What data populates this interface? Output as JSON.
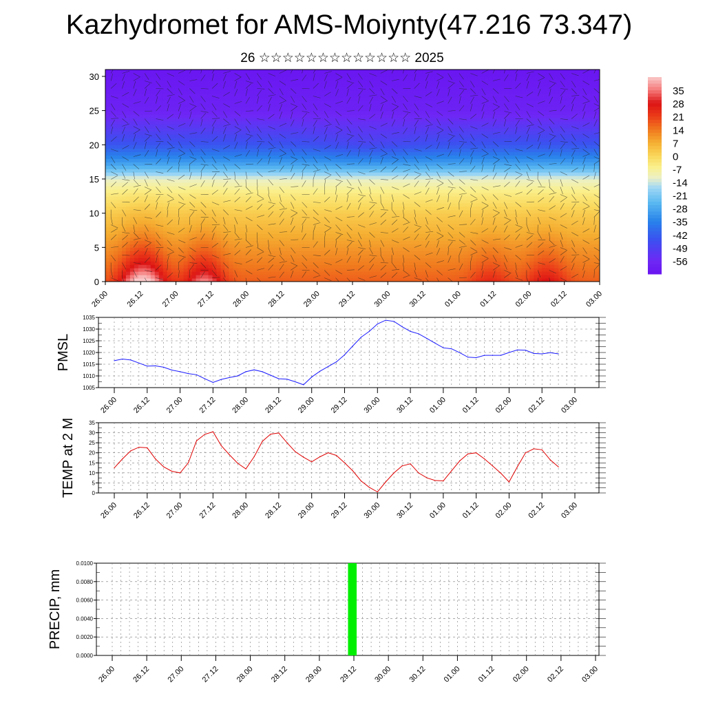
{
  "header": {
    "title": "Kazhydromet for AMS-Moiynty(47.216 73.347)",
    "subtitle": "26 ☆☆☆☆☆☆☆☆☆☆☆☆☆ 2025"
  },
  "colors": {
    "pmsl_line": "#1a1aff",
    "temp_line": "#e00000",
    "precip_bar": "#00ee00"
  },
  "chart_data": [
    {
      "type": "heatmap",
      "title": "",
      "x_tick_labels": [
        "26.00",
        "26.12",
        "27.00",
        "27.12",
        "28.00",
        "28.12",
        "29.00",
        "29.12",
        "30.00",
        "30.12",
        "01.00",
        "01.12",
        "02.00",
        "02.12",
        "03.00"
      ],
      "y_tick_labels": [
        "0",
        "5",
        "10",
        "15",
        "20",
        "25",
        "30"
      ],
      "ylim": [
        0,
        31
      ],
      "colorbar": {
        "labels": [
          "35",
          "28",
          "21",
          "14",
          "7",
          "0",
          "-7",
          "-14",
          "-21",
          "-28",
          "-35",
          "-42",
          "-49",
          "-56"
        ],
        "range": [
          -63,
          42
        ]
      },
      "temperature_profile": {
        "heights": [
          0,
          5,
          10,
          13,
          15,
          17,
          20,
          25,
          28,
          31
        ],
        "base_temps": [
          17,
          10,
          2,
          -5,
          -12,
          -28,
          -44,
          -58,
          -60,
          -62
        ]
      },
      "surface_anomaly_peaks": [
        {
          "x": 0.85,
          "amp": 16
        },
        {
          "x": 1.25,
          "amp": 18
        },
        {
          "x": 2.8,
          "amp": 20
        },
        {
          "x": 10.9,
          "amp": 8
        },
        {
          "x": 12.5,
          "amp": 12
        }
      ],
      "wind_barbs": "arrows overlaid on field"
    },
    {
      "type": "line",
      "ylabel": "PMSL",
      "x_tick_labels": [
        "26.00",
        "26.12",
        "27.00",
        "27.12",
        "28.00",
        "28.12",
        "29.00",
        "29.12",
        "30.00",
        "30.12",
        "01.00",
        "01.12",
        "02.00",
        "02.12",
        "03.00"
      ],
      "y_tick_labels": [
        "1005",
        "1010",
        "1015",
        "1020",
        "1025",
        "1030",
        "1035"
      ],
      "ylim": [
        1005,
        1035
      ],
      "x": [
        0,
        0.25,
        0.5,
        0.75,
        1,
        1.25,
        1.5,
        1.75,
        2,
        2.25,
        2.5,
        2.75,
        3,
        3.25,
        3.5,
        3.75,
        4,
        4.25,
        4.5,
        4.75,
        5,
        5.25,
        5.5,
        5.75,
        6,
        6.25,
        6.5,
        6.75,
        7,
        7.25,
        7.5,
        7.75,
        8,
        8.25,
        8.5,
        8.75,
        9,
        9.25,
        9.5,
        9.75,
        10,
        10.25,
        10.5,
        10.75,
        11,
        11.25,
        11.5,
        11.75,
        12,
        12.25,
        12.5,
        12.75,
        13,
        13.25,
        13.5
      ],
      "values": [
        1016.5,
        1017.2,
        1016.8,
        1015.5,
        1014.2,
        1014.3,
        1013.7,
        1012.5,
        1011.8,
        1011,
        1010.5,
        1008.8,
        1007.2,
        1008.5,
        1009.3,
        1010,
        1011.8,
        1012.6,
        1011.8,
        1010.3,
        1008.8,
        1008.6,
        1007.5,
        1006.2,
        1009.5,
        1012,
        1014,
        1016,
        1019,
        1022.8,
        1026.5,
        1029,
        1032.2,
        1033.8,
        1033.3,
        1031,
        1029,
        1028,
        1026,
        1024,
        1022,
        1021.6,
        1019.9,
        1018,
        1017.8,
        1018.8,
        1018.8,
        1018.8,
        1020,
        1021.1,
        1021,
        1019.6,
        1019.4,
        1019.9,
        1019.4
      ]
    },
    {
      "type": "line",
      "ylabel": "TEMP at 2 M",
      "x_tick_labels": [
        "26.00",
        "26.12",
        "27.00",
        "27.12",
        "28.00",
        "28.12",
        "29.00",
        "29.12",
        "30.00",
        "30.12",
        "01.00",
        "01.12",
        "02.00",
        "02.12",
        "03.00"
      ],
      "y_tick_labels": [
        "0",
        "5",
        "10",
        "15",
        "20",
        "25",
        "30",
        "35"
      ],
      "ylim": [
        0,
        35
      ],
      "x": [
        0,
        0.25,
        0.5,
        0.75,
        1,
        1.25,
        1.5,
        1.75,
        2,
        2.25,
        2.5,
        2.75,
        3,
        3.25,
        3.5,
        3.75,
        4,
        4.25,
        4.5,
        4.75,
        5,
        5.25,
        5.5,
        5.75,
        6,
        6.25,
        6.5,
        6.75,
        7,
        7.25,
        7.5,
        7.75,
        8,
        8.25,
        8.5,
        8.75,
        9,
        9.25,
        9.5,
        9.75,
        10,
        10.25,
        10.5,
        10.75,
        11,
        11.25,
        11.5,
        11.75,
        12,
        12.25,
        12.5,
        12.75,
        13,
        13.25,
        13.5
      ],
      "values": [
        12.5,
        17,
        21,
        22.8,
        22.5,
        17,
        13,
        10.8,
        10,
        15,
        26,
        29.2,
        30.5,
        23.6,
        19,
        14.8,
        12,
        18,
        25.7,
        29.3,
        29.9,
        25,
        20.6,
        17.8,
        15.5,
        18,
        20,
        18.7,
        15,
        11,
        6,
        2.8,
        0.5,
        5.5,
        10,
        13.5,
        14.5,
        10,
        7.5,
        6.2,
        6,
        11,
        16,
        19.5,
        20,
        17,
        13.5,
        9.8,
        5.5,
        13,
        20,
        22,
        21.5,
        16.5,
        13
      ]
    },
    {
      "type": "bar",
      "ylabel": "PRECIP, mm",
      "x_tick_labels": [
        "26.00",
        "26.12",
        "27.00",
        "27.12",
        "28.00",
        "28.12",
        "29.00",
        "29.12",
        "30.00",
        "30.12",
        "01.00",
        "01.12",
        "02.00",
        "02.12",
        "03.00"
      ],
      "y_tick_labels": [
        "0.0000",
        "0.0020",
        "0.0040",
        "0.0060",
        "0.0080",
        "0.0100"
      ],
      "ylim": [
        0,
        0.01
      ],
      "bars": [
        {
          "x_start": 6.83,
          "x_end": 7.08,
          "value": 0.01
        }
      ]
    }
  ]
}
